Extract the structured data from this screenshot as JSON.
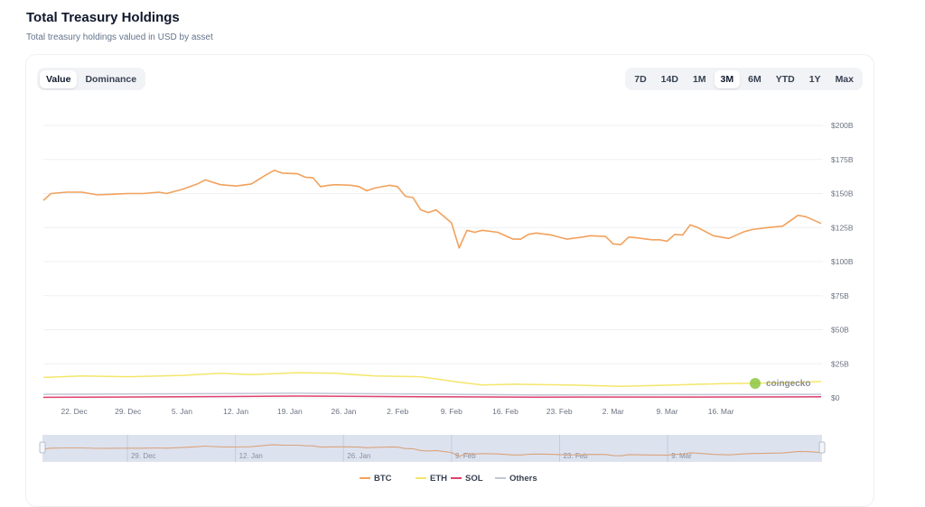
{
  "header": {
    "title": "Total Treasury Holdings",
    "subtitle": "Total treasury holdings valued in USD by asset"
  },
  "view_modes": {
    "options": [
      "Value",
      "Dominance"
    ],
    "selected": "Value"
  },
  "time_ranges": {
    "options": [
      "7D",
      "14D",
      "1M",
      "3M",
      "6M",
      "YTD",
      "1Y",
      "Max"
    ],
    "selected": "3M"
  },
  "watermark": "coingecko",
  "colors": {
    "BTC": "#f2a15c",
    "ETH": "#f4e66a",
    "SOL": "#e0416f",
    "Others": "#c0c6d6",
    "grid": "#eef0f3",
    "axis_text": "#6b7280"
  },
  "chart_data": {
    "type": "line",
    "title": "Total Treasury Holdings",
    "ylabel": "",
    "xlabel": "",
    "y_unit": "$",
    "ylim": [
      0,
      200000000000
    ],
    "yticks": [
      "$0",
      "$25B",
      "$50B",
      "$75B",
      "$100B",
      "$125B",
      "$150B",
      "$175B",
      "$200B"
    ],
    "ytick_values": [
      0,
      25000000000,
      50000000000,
      75000000000,
      100000000000,
      125000000000,
      150000000000,
      175000000000,
      200000000000
    ],
    "xticks": [
      "22. Dec",
      "29. Dec",
      "5. Jan",
      "12. Jan",
      "19. Jan",
      "26. Jan",
      "2. Feb",
      "9. Feb",
      "16. Feb",
      "23. Feb",
      "2. Mar",
      "9. Mar",
      "16. Mar"
    ],
    "x_start": "2024-12-18",
    "x_end": "2025-03-20",
    "navigator_labels": [
      "29. Dec",
      "12. Jan",
      "26. Jan",
      "9. Feb",
      "23. Feb",
      "9. Mar"
    ],
    "legend_position": "bottom",
    "grid": true,
    "series": [
      {
        "name": "BTC",
        "values": [
          [
            "2024-12-18",
            145
          ],
          [
            "2024-12-19",
            150
          ],
          [
            "2024-12-21",
            151
          ],
          [
            "2024-12-23",
            151
          ],
          [
            "2024-12-25",
            149
          ],
          [
            "2024-12-27",
            149.5
          ],
          [
            "2024-12-29",
            150
          ],
          [
            "2024-12-31",
            150
          ],
          [
            "2025-01-02",
            151
          ],
          [
            "2025-01-03",
            150
          ],
          [
            "2025-01-05",
            153
          ],
          [
            "2025-01-07",
            157
          ],
          [
            "2025-01-08",
            160
          ],
          [
            "2025-01-10",
            156.5
          ],
          [
            "2025-01-12",
            155.5
          ],
          [
            "2025-01-14",
            157
          ],
          [
            "2025-01-16",
            164
          ],
          [
            "2025-01-17",
            167
          ],
          [
            "2025-01-18",
            165
          ],
          [
            "2025-01-20",
            164.5
          ],
          [
            "2025-01-21",
            162
          ],
          [
            "2025-01-22",
            161.5
          ],
          [
            "2025-01-23",
            155
          ],
          [
            "2025-01-24",
            156
          ],
          [
            "2025-01-25",
            156.5
          ],
          [
            "2025-01-27",
            156
          ],
          [
            "2025-01-28",
            155
          ],
          [
            "2025-01-29",
            152
          ],
          [
            "2025-01-30",
            154
          ],
          [
            "2025-02-01",
            156
          ],
          [
            "2025-02-02",
            155
          ],
          [
            "2025-02-03",
            148
          ],
          [
            "2025-02-04",
            147
          ],
          [
            "2025-02-05",
            138
          ],
          [
            "2025-02-06",
            136
          ],
          [
            "2025-02-07",
            138
          ],
          [
            "2025-02-09",
            128.5
          ],
          [
            "2025-02-10",
            110
          ],
          [
            "2025-02-11",
            123
          ],
          [
            "2025-02-12",
            121.5
          ],
          [
            "2025-02-13",
            123
          ],
          [
            "2025-02-15",
            121.5
          ],
          [
            "2025-02-17",
            116.5
          ],
          [
            "2025-02-18",
            116.5
          ],
          [
            "2025-02-19",
            120
          ],
          [
            "2025-02-20",
            121
          ],
          [
            "2025-02-22",
            119.5
          ],
          [
            "2025-02-24",
            116.5
          ],
          [
            "2025-02-26",
            118
          ],
          [
            "2025-02-27",
            119
          ],
          [
            "2025-03-01",
            118.5
          ],
          [
            "2025-03-02",
            113
          ],
          [
            "2025-03-03",
            112.5
          ],
          [
            "2025-03-04",
            118
          ],
          [
            "2025-03-05",
            117.5
          ],
          [
            "2025-03-07",
            116
          ],
          [
            "2025-03-08",
            116
          ],
          [
            "2025-03-09",
            115
          ],
          [
            "2025-03-10",
            120
          ],
          [
            "2025-03-11",
            119.5
          ],
          [
            "2025-03-12",
            127
          ],
          [
            "2025-03-13",
            125
          ],
          [
            "2025-03-15",
            119
          ],
          [
            "2025-03-17",
            117
          ],
          [
            "2025-03-19",
            122
          ],
          [
            "2025-03-20",
            123.5
          ],
          [
            "2025-03-22",
            125
          ],
          [
            "2025-03-24",
            126
          ],
          [
            "2025-03-26",
            134
          ],
          [
            "2025-03-27",
            133
          ],
          [
            "2025-03-29",
            128
          ]
        ]
      },
      {
        "name": "ETH",
        "values": [
          [
            "2024-12-18",
            15
          ],
          [
            "2024-12-23",
            16
          ],
          [
            "2024-12-29",
            15.5
          ],
          [
            "2025-01-05",
            16.5
          ],
          [
            "2025-01-10",
            18
          ],
          [
            "2025-01-14",
            17
          ],
          [
            "2025-01-20",
            18.5
          ],
          [
            "2025-01-25",
            18
          ],
          [
            "2025-01-30",
            16
          ],
          [
            "2025-02-05",
            15.5
          ],
          [
            "2025-02-10",
            11.5
          ],
          [
            "2025-02-13",
            9.5
          ],
          [
            "2025-02-17",
            10
          ],
          [
            "2025-02-24",
            9.5
          ],
          [
            "2025-03-03",
            8.5
          ],
          [
            "2025-03-10",
            9.5
          ],
          [
            "2025-03-17",
            10.5
          ],
          [
            "2025-03-24",
            11
          ],
          [
            "2025-03-29",
            12
          ]
        ]
      },
      {
        "name": "SOL",
        "values": [
          [
            "2024-12-18",
            0.4
          ],
          [
            "2025-01-05",
            0.8
          ],
          [
            "2025-01-20",
            1.3
          ],
          [
            "2025-02-05",
            0.8
          ],
          [
            "2025-02-20",
            0.5
          ],
          [
            "2025-03-10",
            0.6
          ],
          [
            "2025-03-29",
            0.8
          ]
        ]
      },
      {
        "name": "Others",
        "values": [
          [
            "2024-12-18",
            2.6
          ],
          [
            "2025-01-05",
            3.0
          ],
          [
            "2025-01-20",
            3.4
          ],
          [
            "2025-02-05",
            2.8
          ],
          [
            "2025-02-20",
            2.2
          ],
          [
            "2025-03-10",
            2.4
          ],
          [
            "2025-03-29",
            2.6
          ]
        ]
      }
    ],
    "value_unit": "billions USD"
  }
}
